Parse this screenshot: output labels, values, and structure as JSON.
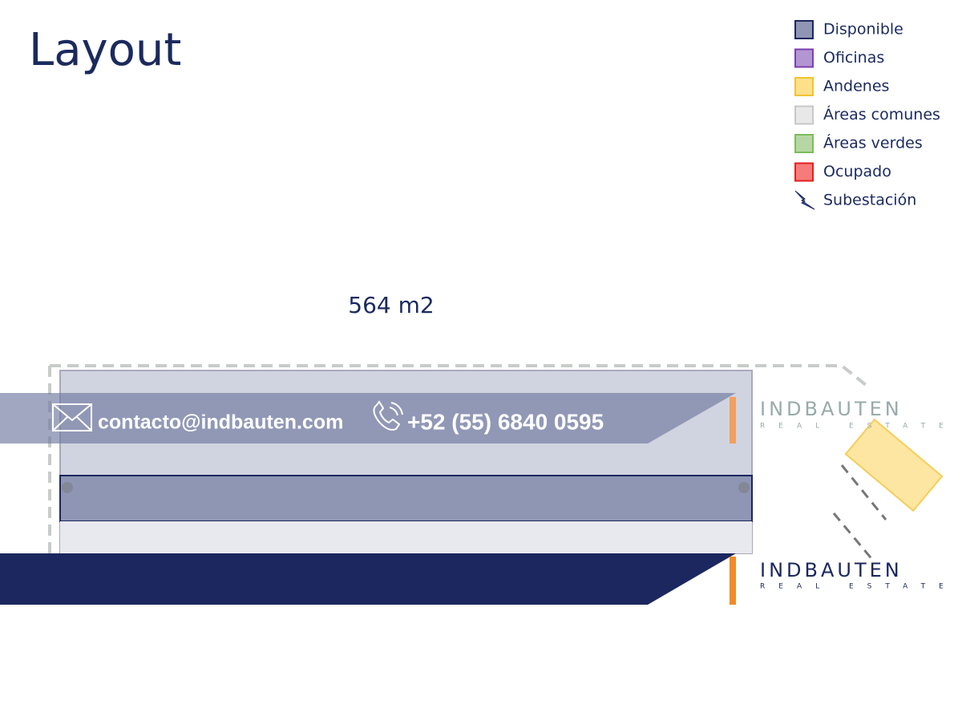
{
  "header": {
    "title": "Layout"
  },
  "legend": [
    {
      "label": "Disponible",
      "fill": "#8f96b4",
      "border": "#1b275e"
    },
    {
      "label": "Oficinas",
      "fill": "#b296d2",
      "border": "#7a3fae"
    },
    {
      "label": "Andenes",
      "fill": "#fde08a",
      "border": "#f2c233"
    },
    {
      "label": "Áreas comunes",
      "fill": "#e8e8e8",
      "border": "#c8c8c8"
    },
    {
      "label": "Áreas verdes",
      "fill": "#b6d7a3",
      "border": "#7dbb5e"
    },
    {
      "label": "Ocupado",
      "fill": "#f77b7b",
      "border": "#e02020"
    },
    {
      "label": "Subestación"
    }
  ],
  "area": {
    "label": "564 m2"
  },
  "contact": {
    "email": "contacto@indbauten.com",
    "phone": "+52 (55) 6840 0595"
  },
  "logo": {
    "name": "INDBAUTEN",
    "tagline": "REAL ESTATE"
  }
}
